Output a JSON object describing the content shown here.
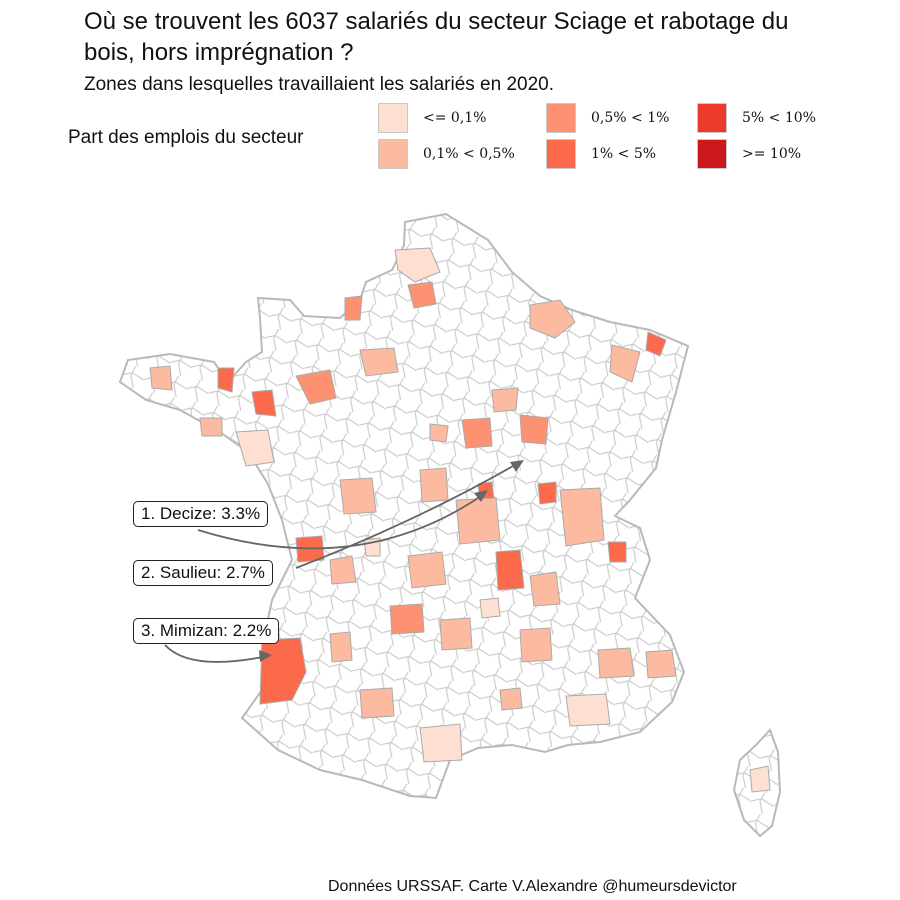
{
  "title": "Où se trouvent les 6037 salariés du secteur Sciage et rabotage du bois, hors imprégnation ?",
  "subtitle": "Zones dans lesquelles travaillaient les salariés en 2020.",
  "legend": {
    "title": "Part des emplois du secteur",
    "items": [
      {
        "label": "<= 0,1%",
        "color": "#fee0d2"
      },
      {
        "label": "0,1% < 0,5%",
        "color": "#fcbba1"
      },
      {
        "label": "0,5% < 1%",
        "color": "#fc9272"
      },
      {
        "label": "1% < 5%",
        "color": "#fb6a4a"
      },
      {
        "label": "5% < 10%",
        "color": "#ef3b2c"
      },
      {
        "label": ">= 10%",
        "color": "#cb181d"
      }
    ]
  },
  "callouts": [
    {
      "label": "1. Decize: 3.3%"
    },
    {
      "label": "2. Saulieu: 2.7%"
    },
    {
      "label": "3. Mimizan: 2.2%"
    }
  ],
  "source": "Données URSSAF. Carte V.Alexandre @humeursdevictor"
}
